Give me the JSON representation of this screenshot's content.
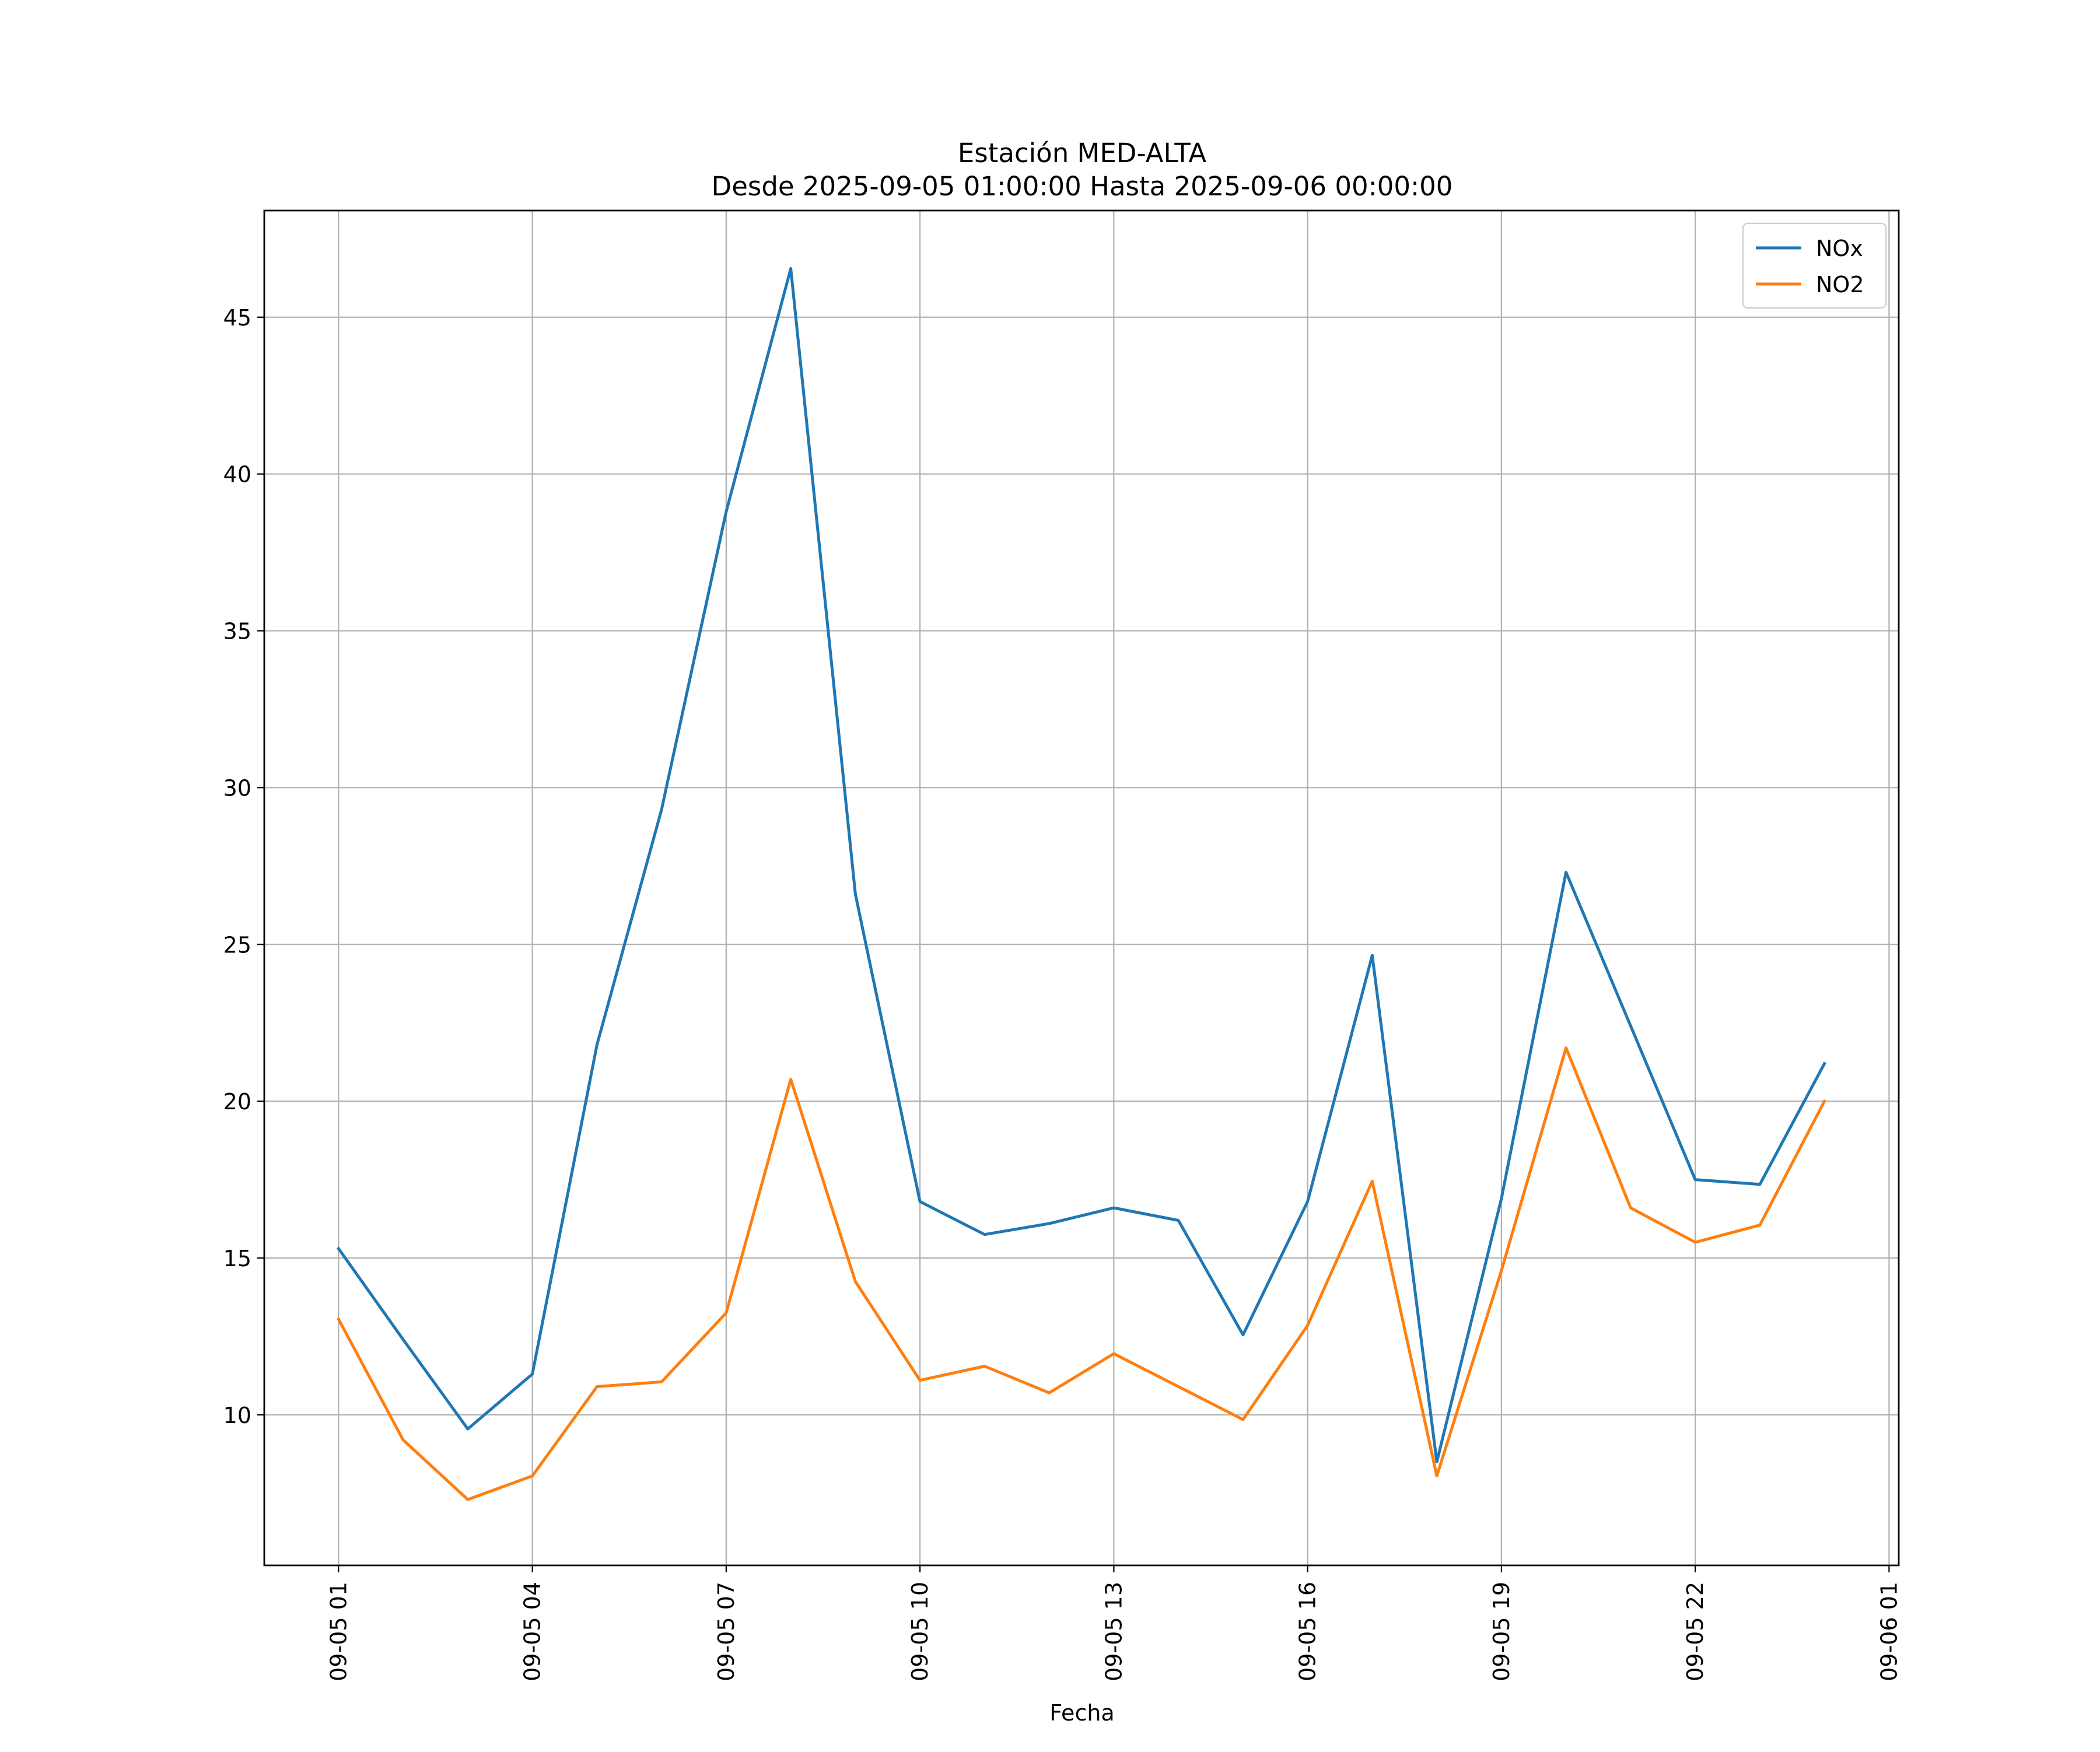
{
  "chart_data": {
    "type": "line",
    "title": "Estación MED-ALTA",
    "subtitle": "Desde 2025-09-05 01:00:00 Hasta 2025-09-06 00:00:00",
    "xlabel": "Fecha",
    "ylabel": "",
    "x_hours": [
      1,
      2,
      3,
      4,
      5,
      6,
      7,
      8,
      9,
      10,
      11,
      12,
      13,
      14,
      15,
      16,
      17,
      18,
      19,
      20,
      21,
      22,
      23,
      24
    ],
    "x": [
      "2025-09-05 01:00",
      "2025-09-05 02:00",
      "2025-09-05 03:00",
      "2025-09-05 04:00",
      "2025-09-05 05:00",
      "2025-09-05 06:00",
      "2025-09-05 07:00",
      "2025-09-05 08:00",
      "2025-09-05 09:00",
      "2025-09-05 10:00",
      "2025-09-05 11:00",
      "2025-09-05 12:00",
      "2025-09-05 13:00",
      "2025-09-05 14:00",
      "2025-09-05 15:00",
      "2025-09-05 16:00",
      "2025-09-05 17:00",
      "2025-09-05 18:00",
      "2025-09-05 19:00",
      "2025-09-05 20:00",
      "2025-09-05 21:00",
      "2025-09-05 22:00",
      "2025-09-05 23:00",
      "2025-09-06 00:00"
    ],
    "series": [
      {
        "name": "NOx",
        "color": "#1f77b4",
        "values": [
          15.3,
          12.4,
          9.55,
          11.3,
          21.8,
          29.3,
          38.8,
          46.55,
          26.6,
          16.8,
          15.75,
          16.1,
          16.6,
          16.2,
          12.55,
          16.8,
          24.65,
          8.5,
          16.9,
          27.3,
          22.4,
          17.5,
          17.35,
          21.2
        ]
      },
      {
        "name": "NO2",
        "color": "#ff7f0e",
        "values": [
          13.05,
          9.2,
          7.3,
          8.05,
          10.9,
          11.05,
          13.25,
          20.7,
          14.25,
          11.1,
          11.55,
          10.7,
          11.95,
          10.9,
          9.85,
          12.85,
          17.45,
          8.05,
          14.6,
          21.7,
          16.6,
          15.5,
          16.05,
          20.0
        ]
      }
    ],
    "xticks": [
      {
        "label": "09-05 01",
        "hour": 1
      },
      {
        "label": "09-05 04",
        "hour": 4
      },
      {
        "label": "09-05 07",
        "hour": 7
      },
      {
        "label": "09-05 10",
        "hour": 10
      },
      {
        "label": "09-05 13",
        "hour": 13
      },
      {
        "label": "09-05 16",
        "hour": 16
      },
      {
        "label": "09-05 19",
        "hour": 19
      },
      {
        "label": "09-05 22",
        "hour": 22
      },
      {
        "label": "09-06 01",
        "hour": 25
      }
    ],
    "yticks": [
      10,
      15,
      20,
      25,
      30,
      35,
      40,
      45
    ],
    "xlim_hours": [
      -0.15,
      25.15
    ],
    "ylim": [
      5.2,
      48.4
    ],
    "grid": true,
    "legend_position": "top-right",
    "colors": {
      "grid": "#b0b0b0",
      "axes": "#000000"
    }
  }
}
